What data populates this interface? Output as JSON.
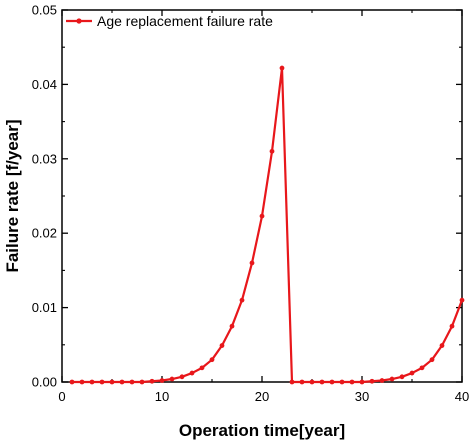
{
  "chart_data": {
    "type": "line",
    "xlabel": "Operation time[year]",
    "ylabel": "Failure rate [f/year]",
    "xlim": [
      0,
      40
    ],
    "ylim": [
      0,
      0.05
    ],
    "x_ticks": [
      0,
      10,
      20,
      30,
      40
    ],
    "x_tick_labels": [
      "0",
      "10",
      "20",
      "30",
      "40"
    ],
    "y_ticks": [
      0,
      0.01,
      0.02,
      0.03,
      0.04,
      0.05
    ],
    "y_tick_labels": [
      "0.00",
      "0.01",
      "0.02",
      "0.03",
      "0.04",
      "0.05"
    ],
    "grid": false,
    "legend_position": "top-left",
    "series_color": "#e8171b",
    "series": [
      {
        "name": "Age replacement failure rate",
        "x": [
          1,
          2,
          3,
          4,
          5,
          6,
          7,
          8,
          9,
          10,
          11,
          12,
          13,
          14,
          15,
          16,
          17,
          18,
          19,
          20,
          21,
          22,
          23,
          24,
          25,
          26,
          27,
          28,
          29,
          30,
          31,
          32,
          33,
          34,
          35,
          36,
          37,
          38,
          39,
          40
        ],
        "y": [
          0,
          0,
          0,
          0,
          0,
          0,
          0,
          0,
          0.0001,
          0.0002,
          0.0004,
          0.0007,
          0.0012,
          0.0019,
          0.003,
          0.0049,
          0.0075,
          0.011,
          0.016,
          0.0223,
          0.031,
          0.0422,
          0,
          0,
          0,
          0,
          0,
          0,
          0,
          0,
          0.0001,
          0.0002,
          0.0004,
          0.0007,
          0.0012,
          0.0019,
          0.003,
          0.0049,
          0.0075,
          0.011
        ]
      }
    ]
  }
}
